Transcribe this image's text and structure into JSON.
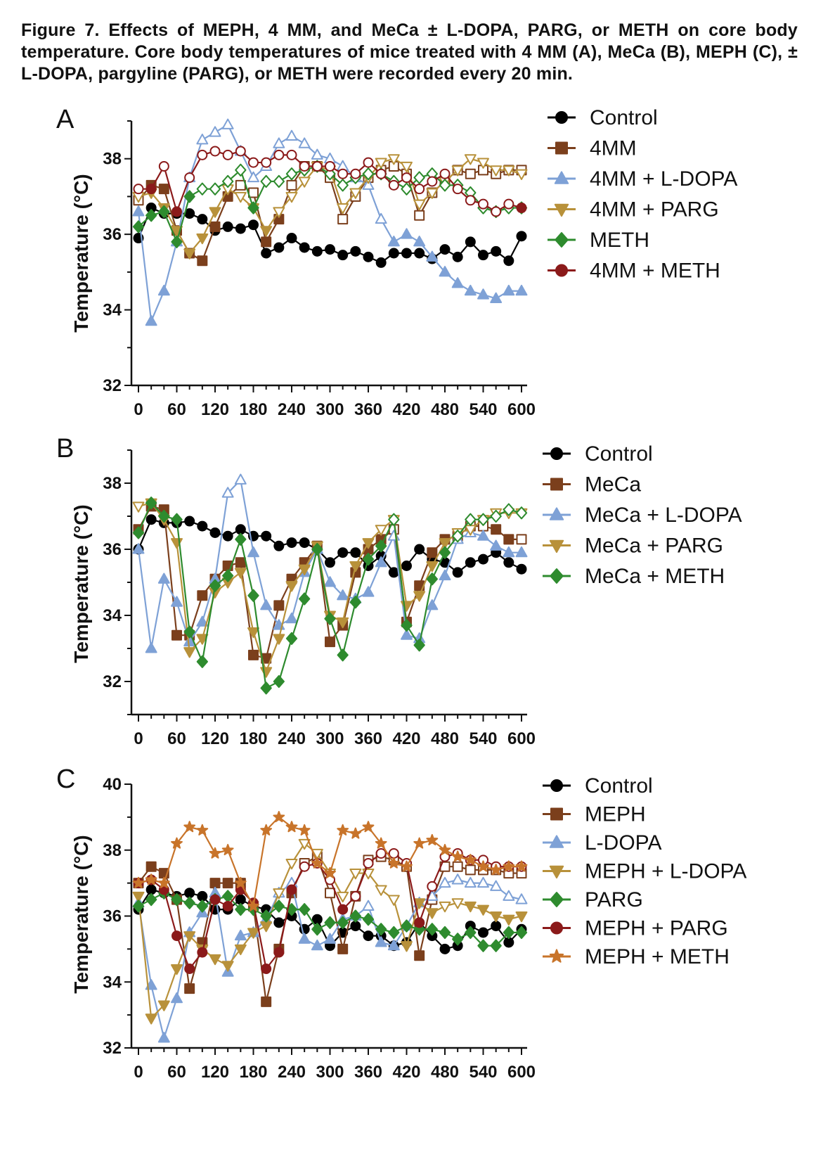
{
  "caption": "Figure 7. Effects of MEPH, 4 MM, and MeCa ± L-DOPA, PARG, or METH on core body temperature. Core body temperatures of mice treated with 4 MM (A), MeCa (B), MEPH (C), ± L-DOPA, pargyline (PARG), or METH were recorded every 20 min.",
  "chart_data": [
    {
      "type": "line",
      "panel": "A",
      "ylabel": "Temperature (°C)",
      "xlabel": "",
      "xlim": [
        0,
        600
      ],
      "ylim": [
        32,
        39
      ],
      "yticks": [
        32,
        34,
        36,
        38
      ],
      "xticks": [
        0,
        60,
        120,
        180,
        240,
        300,
        360,
        420,
        480,
        540,
        600
      ],
      "x": [
        0,
        20,
        40,
        60,
        80,
        100,
        120,
        140,
        160,
        180,
        200,
        220,
        240,
        260,
        280,
        300,
        320,
        340,
        360,
        380,
        400,
        420,
        440,
        460,
        480,
        500,
        520,
        540,
        560,
        580,
        600
      ],
      "series": [
        {
          "name": "Control",
          "color": "#000000",
          "marker": "circle",
          "values": [
            35.9,
            36.7,
            36.55,
            36.55,
            36.55,
            36.4,
            36.1,
            36.2,
            36.15,
            36.25,
            35.5,
            35.65,
            35.9,
            35.65,
            35.55,
            35.6,
            35.45,
            35.55,
            35.4,
            35.25,
            35.5,
            35.5,
            35.5,
            35.35,
            35.6,
            35.4,
            35.8,
            35.45,
            35.55,
            35.3,
            35.95
          ]
        },
        {
          "name": "4MM",
          "color": "#7b3f1c",
          "marker": "square",
          "values": [
            36.9,
            37.3,
            37.2,
            36.1,
            35.5,
            35.3,
            36.2,
            37.0,
            37.3,
            37.1,
            35.8,
            36.4,
            37.3,
            37.8,
            37.8,
            37.5,
            36.4,
            37.0,
            37.5,
            37.7,
            37.8,
            37.6,
            36.5,
            37.1,
            37.4,
            37.7,
            37.6,
            37.7,
            37.6,
            37.7,
            37.7
          ]
        },
        {
          "name": "4MM + L-DOPA",
          "color": "#7ea1d6",
          "marker": "triangle-up",
          "values": [
            36.6,
            33.7,
            34.5,
            35.8,
            37.5,
            38.5,
            38.7,
            38.9,
            38.2,
            37.5,
            37.8,
            38.4,
            38.6,
            38.4,
            38.1,
            38.0,
            37.8,
            37.5,
            37.3,
            36.4,
            35.8,
            36.0,
            35.8,
            35.4,
            35.0,
            34.7,
            34.5,
            34.4,
            34.3,
            34.5,
            34.5
          ]
        },
        {
          "name": "4MM + PARG",
          "color": "#b8913a",
          "marker": "triangle-down",
          "values": [
            37.0,
            37.1,
            36.7,
            36.1,
            35.5,
            35.9,
            36.6,
            37.2,
            37.0,
            36.7,
            36.1,
            36.6,
            37.0,
            37.4,
            37.8,
            37.7,
            36.7,
            37.1,
            37.5,
            37.9,
            38.0,
            37.8,
            36.8,
            37.1,
            37.4,
            37.7,
            38.0,
            37.9,
            37.7,
            37.7,
            37.6
          ]
        },
        {
          "name": "METH",
          "color": "#2e8b2e",
          "marker": "diamond",
          "values": [
            36.2,
            36.5,
            36.6,
            35.8,
            37.0,
            37.2,
            37.2,
            37.4,
            37.7,
            36.7,
            37.4,
            37.4,
            37.6,
            37.7,
            37.8,
            37.6,
            37.3,
            37.5,
            37.6,
            37.6,
            37.4,
            37.2,
            37.5,
            37.6,
            37.3,
            37.3,
            37.1,
            36.7,
            36.6,
            36.7,
            36.7
          ]
        },
        {
          "name": "4MM + METH",
          "color": "#8b1a1a",
          "marker": "circle",
          "values": [
            37.2,
            37.2,
            37.8,
            36.6,
            37.5,
            38.1,
            38.2,
            38.1,
            38.2,
            37.9,
            37.9,
            38.1,
            38.1,
            37.8,
            37.8,
            37.8,
            37.6,
            37.6,
            37.9,
            37.6,
            37.3,
            37.5,
            37.2,
            37.4,
            37.6,
            37.2,
            36.9,
            36.8,
            36.6,
            36.8,
            36.7
          ]
        }
      ]
    },
    {
      "type": "line",
      "panel": "B",
      "ylabel": "Temperature (°C)",
      "xlabel": "",
      "xlim": [
        0,
        600
      ],
      "ylim": [
        31,
        39
      ],
      "yticks": [
        32,
        34,
        36,
        38
      ],
      "xticks": [
        0,
        60,
        120,
        180,
        240,
        300,
        360,
        420,
        480,
        540,
        600
      ],
      "x": [
        0,
        20,
        40,
        60,
        80,
        100,
        120,
        140,
        160,
        180,
        200,
        220,
        240,
        260,
        280,
        300,
        320,
        340,
        360,
        380,
        400,
        420,
        440,
        460,
        480,
        500,
        520,
        540,
        560,
        580,
        600
      ],
      "series": [
        {
          "name": "Control",
          "color": "#000000",
          "marker": "circle",
          "values": [
            36.0,
            36.9,
            36.8,
            36.8,
            36.85,
            36.7,
            36.5,
            36.4,
            36.6,
            36.4,
            36.4,
            36.1,
            36.2,
            36.2,
            36.0,
            35.6,
            35.9,
            35.9,
            35.5,
            35.8,
            35.3,
            35.5,
            36.0,
            35.7,
            35.6,
            35.3,
            35.6,
            35.7,
            35.9,
            35.6,
            35.4
          ]
        },
        {
          "name": "MeCa",
          "color": "#7b3f1c",
          "marker": "square",
          "values": [
            36.6,
            37.3,
            37.2,
            33.4,
            33.4,
            34.6,
            35.1,
            35.5,
            35.6,
            32.8,
            32.7,
            34.3,
            35.1,
            35.6,
            36.1,
            33.2,
            33.7,
            35.3,
            36.0,
            36.3,
            36.6,
            33.8,
            34.9,
            35.9,
            36.3,
            36.4,
            36.7,
            36.7,
            36.6,
            36.3,
            36.3
          ]
        },
        {
          "name": "MeCa + L-DOPA",
          "color": "#7ea1d6",
          "marker": "triangle-up",
          "values": [
            36.0,
            33.0,
            35.1,
            34.4,
            33.2,
            33.8,
            35.1,
            37.7,
            38.1,
            35.9,
            34.3,
            33.7,
            33.9,
            35.3,
            36.0,
            35.0,
            34.6,
            34.5,
            34.7,
            35.6,
            36.4,
            33.4,
            33.3,
            34.3,
            35.2,
            36.3,
            36.5,
            36.4,
            36.1,
            35.9,
            35.9
          ]
        },
        {
          "name": "MeCa + PARG",
          "color": "#b8913a",
          "marker": "triangle-down",
          "values": [
            37.3,
            37.4,
            36.9,
            36.2,
            32.9,
            33.3,
            34.7,
            35.0,
            35.3,
            33.5,
            32.3,
            33.3,
            34.9,
            35.4,
            36.1,
            34.0,
            33.8,
            35.5,
            36.2,
            36.6,
            36.9,
            34.3,
            34.6,
            35.5,
            36.2,
            36.5,
            36.6,
            36.9,
            37.1,
            37.1,
            37.1
          ]
        },
        {
          "name": "MeCa + METH",
          "color": "#2e8b2e",
          "marker": "diamond",
          "values": [
            36.5,
            37.4,
            37.0,
            36.9,
            33.5,
            32.6,
            34.9,
            35.2,
            36.3,
            34.6,
            31.8,
            32.0,
            33.3,
            34.5,
            36.0,
            33.9,
            32.8,
            34.4,
            35.7,
            36.1,
            36.9,
            33.7,
            33.1,
            35.1,
            35.9,
            36.4,
            36.9,
            36.9,
            37.0,
            37.2,
            37.1
          ]
        }
      ]
    },
    {
      "type": "line",
      "panel": "C",
      "ylabel": "Temperature (°C)",
      "xlabel": "",
      "xlim": [
        0,
        600
      ],
      "ylim": [
        32,
        40
      ],
      "yticks": [
        32,
        34,
        36,
        38,
        40
      ],
      "xticks": [
        0,
        60,
        120,
        180,
        240,
        300,
        360,
        420,
        480,
        540,
        600
      ],
      "x": [
        0,
        20,
        40,
        60,
        80,
        100,
        120,
        140,
        160,
        180,
        200,
        220,
        240,
        260,
        280,
        300,
        320,
        340,
        360,
        380,
        400,
        420,
        440,
        460,
        480,
        500,
        520,
        540,
        560,
        580,
        600
      ],
      "series": [
        {
          "name": "Control",
          "color": "#000000",
          "marker": "circle",
          "values": [
            36.2,
            36.8,
            36.7,
            36.6,
            36.7,
            36.6,
            36.2,
            36.2,
            36.5,
            36.3,
            36.2,
            35.8,
            36.0,
            35.6,
            35.9,
            35.1,
            35.5,
            35.7,
            35.4,
            35.4,
            35.1,
            35.2,
            35.8,
            35.4,
            35.0,
            35.1,
            35.7,
            35.5,
            35.7,
            35.2,
            35.6
          ]
        },
        {
          "name": "MEPH",
          "color": "#7b3f1c",
          "marker": "square",
          "values": [
            37.0,
            37.5,
            37.3,
            36.5,
            33.8,
            35.2,
            37.0,
            37.0,
            37.0,
            36.3,
            33.4,
            35.0,
            36.7,
            37.6,
            37.8,
            36.7,
            35.0,
            36.6,
            37.7,
            37.8,
            37.7,
            37.5,
            34.8,
            36.5,
            37.5,
            37.5,
            37.4,
            37.4,
            37.4,
            37.3,
            37.3
          ]
        },
        {
          "name": "L-DOPA",
          "color": "#7ea1d6",
          "marker": "triangle-up",
          "values": [
            36.4,
            33.9,
            32.3,
            33.5,
            35.5,
            36.1,
            36.7,
            34.3,
            35.4,
            35.5,
            35.9,
            36.7,
            37.0,
            35.3,
            35.1,
            35.3,
            35.9,
            36.0,
            36.3,
            35.2,
            35.1,
            35.7,
            36.4,
            36.6,
            37.0,
            37.1,
            37.0,
            37.0,
            36.9,
            36.6,
            36.5
          ]
        },
        {
          "name": "MEPH + L-DOPA",
          "color": "#b8913a",
          "marker": "triangle-down",
          "values": [
            36.6,
            32.9,
            33.3,
            34.4,
            35.4,
            35.0,
            34.7,
            34.5,
            35.0,
            35.5,
            35.7,
            36.7,
            37.6,
            38.2,
            37.9,
            37.3,
            36.6,
            37.3,
            37.3,
            36.8,
            36.5,
            35.1,
            36.4,
            36.1,
            36.3,
            36.4,
            36.3,
            36.2,
            36.0,
            35.9,
            36.0
          ]
        },
        {
          "name": "PARG",
          "color": "#2e8b2e",
          "marker": "diamond",
          "values": [
            36.3,
            36.5,
            36.7,
            36.5,
            36.4,
            36.3,
            36.5,
            36.6,
            36.2,
            36.2,
            36.0,
            36.3,
            36.2,
            36.2,
            35.6,
            35.8,
            35.8,
            36.0,
            35.9,
            35.6,
            35.5,
            35.7,
            35.6,
            35.6,
            35.5,
            35.3,
            35.5,
            35.1,
            35.1,
            35.5,
            35.5
          ]
        },
        {
          "name": "MEPH + PARG",
          "color": "#8b1a1a",
          "marker": "circle",
          "values": [
            37.0,
            37.1,
            36.8,
            35.4,
            34.4,
            34.9,
            36.5,
            36.3,
            36.8,
            36.4,
            34.4,
            34.9,
            36.8,
            37.5,
            37.6,
            37.1,
            36.2,
            36.6,
            37.6,
            37.9,
            37.9,
            37.6,
            35.8,
            36.9,
            37.8,
            37.9,
            37.7,
            37.7,
            37.5,
            37.5,
            37.5
          ]
        },
        {
          "name": "MEPH + METH",
          "color": "#c8742a",
          "marker": "star",
          "values": [
            37.0,
            37.1,
            37.0,
            38.2,
            38.7,
            38.6,
            37.9,
            38.0,
            37.0,
            36.3,
            38.6,
            39.0,
            38.7,
            38.6,
            37.6,
            37.3,
            38.6,
            38.5,
            38.7,
            38.2,
            37.6,
            37.5,
            38.2,
            38.3,
            38.0,
            37.8,
            37.7,
            37.5,
            37.4,
            37.5,
            37.5
          ]
        }
      ]
    }
  ]
}
